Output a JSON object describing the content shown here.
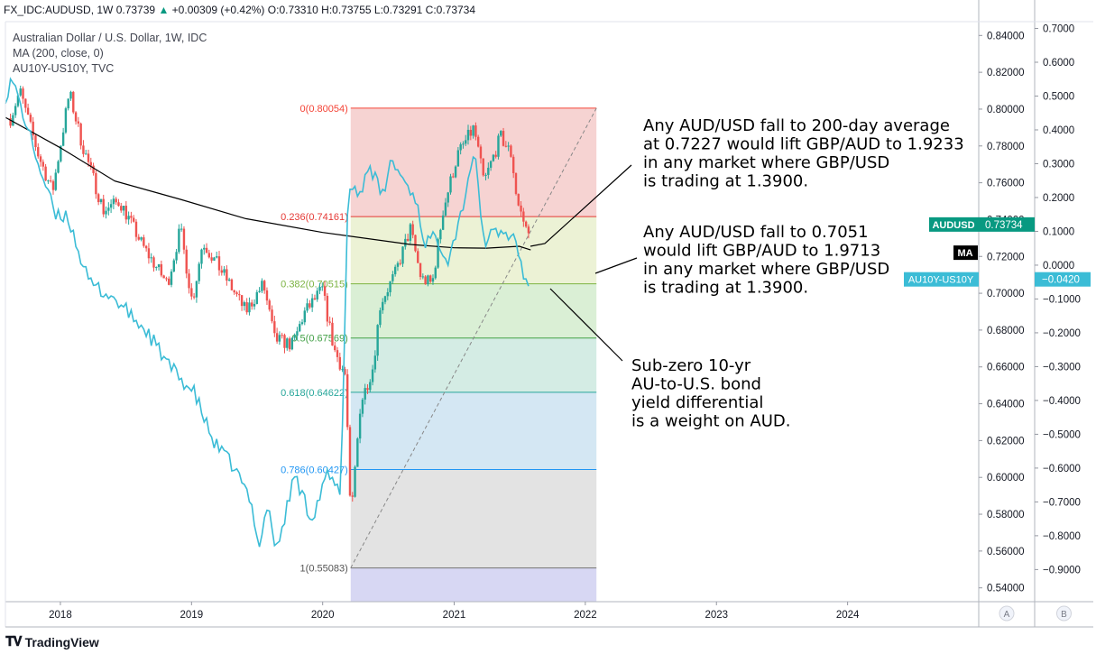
{
  "header": {
    "symbol": "FX_IDC:AUDUSD",
    "interval": "1W",
    "last": "0.73739",
    "change": "+0.00309 (+0.42%)",
    "open_label": "O:",
    "open": "0.73310",
    "high_label": "H:",
    "high": "0.73755",
    "low_label": "L:",
    "low": "0.73291",
    "close_label": "C:",
    "close": "0.73734"
  },
  "legend": {
    "line1": "Australian Dollar / U.S. Dollar, 1W, IDC",
    "line2": "MA (200, close, 0)",
    "line3": "AU10Y-US10Y, TVC"
  },
  "footer": {
    "brand": "TradingView"
  },
  "colors": {
    "up": "#26a69a",
    "down": "#ef5350",
    "ma": "#000000",
    "spread": "#3bbcd6",
    "audusd_badge": "#089981",
    "spread_badge": "#3bbcd6"
  },
  "chart_data": {
    "type": "candlestick",
    "x_axis": {
      "type": "time",
      "range": [
        "2017-08-01",
        "2024-12-31"
      ],
      "tick_labels": [
        "2018",
        "2019",
        "2020",
        "2021",
        "2022",
        "2023",
        "2024"
      ]
    },
    "y_axis_left": {
      "range": [
        0.5325,
        0.8475
      ],
      "tick_labels": [
        "0.84000",
        "0.82000",
        "0.80000",
        "0.78000",
        "0.76000",
        "0.74000",
        "0.72000",
        "0.70000",
        "0.68000",
        "0.66000",
        "0.64000",
        "0.62000",
        "0.60000",
        "0.58000",
        "0.56000",
        "0.54000"
      ],
      "scale_label": "A"
    },
    "y_axis_right": {
      "range": [
        -0.995,
        0.72
      ],
      "tick_labels": [
        "0.7000",
        "0.6000",
        "0.5000",
        "0.4000",
        "0.3000",
        "0.2000",
        "0.1000",
        "0.0000",
        "−0.1000",
        "−0.2000",
        "−0.3000",
        "−0.4000",
        "−0.5000",
        "−0.6000",
        "−0.7000",
        "−0.8000",
        "−0.9000"
      ],
      "scale_label": "B"
    },
    "price_anchors": [
      [
        "2017-08-15",
        0.795
      ],
      [
        "2017-09-10",
        0.81
      ],
      [
        "2017-11-01",
        0.775
      ],
      [
        "2017-12-10",
        0.755
      ],
      [
        "2018-01-26",
        0.809
      ],
      [
        "2018-03-01",
        0.782
      ],
      [
        "2018-05-01",
        0.745
      ],
      [
        "2018-06-15",
        0.75
      ],
      [
        "2018-08-20",
        0.725
      ],
      [
        "2018-10-26",
        0.705
      ],
      [
        "2018-12-01",
        0.735
      ],
      [
        "2019-01-03",
        0.695
      ],
      [
        "2019-02-01",
        0.728
      ],
      [
        "2019-04-01",
        0.71
      ],
      [
        "2019-06-01",
        0.69
      ],
      [
        "2019-07-20",
        0.705
      ],
      [
        "2019-08-20",
        0.675
      ],
      [
        "2019-10-10",
        0.672
      ],
      [
        "2019-11-10",
        0.689
      ],
      [
        "2019-12-31",
        0.702
      ],
      [
        "2020-02-01",
        0.67
      ],
      [
        "2020-03-05",
        0.655
      ],
      [
        "2020-03-19",
        0.575
      ],
      [
        "2020-04-15",
        0.64
      ],
      [
        "2020-05-20",
        0.66
      ],
      [
        "2020-06-10",
        0.695
      ],
      [
        "2020-07-20",
        0.71
      ],
      [
        "2020-09-01",
        0.735
      ],
      [
        "2020-10-01",
        0.708
      ],
      [
        "2020-11-01",
        0.705
      ],
      [
        "2020-12-01",
        0.745
      ],
      [
        "2021-01-10",
        0.775
      ],
      [
        "2021-02-25",
        0.79
      ],
      [
        "2021-03-25",
        0.76
      ],
      [
        "2021-05-10",
        0.785
      ],
      [
        "2021-06-10",
        0.775
      ],
      [
        "2021-06-25",
        0.75
      ],
      [
        "2021-07-20",
        0.735
      ],
      [
        "2021-08-02",
        0.7373
      ]
    ],
    "ma_200": [
      [
        "2017-08-01",
        0.7955
      ],
      [
        "2018-01-01",
        0.779
      ],
      [
        "2018-06-01",
        0.761
      ],
      [
        "2018-12-01",
        0.751
      ],
      [
        "2019-06-01",
        0.7405
      ],
      [
        "2020-01-01",
        0.733
      ],
      [
        "2020-09-01",
        0.7265
      ],
      [
        "2021-01-01",
        0.7247
      ],
      [
        "2021-04-01",
        0.7245
      ],
      [
        "2021-07-01",
        0.7255
      ],
      [
        "2021-08-02",
        0.7235
      ]
    ],
    "au10y_us10y_anchors": [
      [
        "2017-08-01",
        0.5
      ],
      [
        "2017-08-20",
        0.55
      ],
      [
        "2017-11-01",
        0.3
      ],
      [
        "2017-12-20",
        0.14
      ],
      [
        "2018-01-20",
        0.15
      ],
      [
        "2018-03-20",
        -0.05
      ],
      [
        "2018-06-01",
        -0.1
      ],
      [
        "2018-09-01",
        -0.2
      ],
      [
        "2018-11-01",
        -0.3
      ],
      [
        "2019-01-10",
        -0.38
      ],
      [
        "2019-03-01",
        -0.52
      ],
      [
        "2019-05-01",
        -0.6
      ],
      [
        "2019-06-15",
        -0.7
      ],
      [
        "2019-07-10",
        -0.83
      ],
      [
        "2019-08-01",
        -0.7
      ],
      [
        "2019-08-25",
        -0.85
      ],
      [
        "2019-10-15",
        -0.62
      ],
      [
        "2019-12-01",
        -0.75
      ],
      [
        "2020-01-15",
        -0.62
      ],
      [
        "2020-02-20",
        -0.68
      ],
      [
        "2020-03-10",
        0.15
      ],
      [
        "2020-03-20",
        0.25
      ],
      [
        "2020-04-10",
        0.2
      ],
      [
        "2020-05-10",
        0.3
      ],
      [
        "2020-06-15",
        0.2
      ],
      [
        "2020-07-10",
        0.31
      ],
      [
        "2020-08-15",
        0.25
      ],
      [
        "2020-09-15",
        0.2
      ],
      [
        "2020-10-10",
        0.07
      ],
      [
        "2020-11-15",
        0.08
      ],
      [
        "2020-12-15",
        0.02
      ],
      [
        "2021-01-20",
        0.15
      ],
      [
        "2021-02-25",
        0.34
      ],
      [
        "2021-03-25",
        0.07
      ],
      [
        "2021-05-01",
        0.1
      ],
      [
        "2021-06-20",
        0.08
      ],
      [
        "2021-07-20",
        -0.06
      ],
      [
        "2021-08-02",
        -0.042
      ]
    ],
    "fibonacci": {
      "start_date": "2020-03-19",
      "end_date": "2022-02-01",
      "low": 0.55083,
      "high": 0.80054,
      "levels": [
        {
          "ratio": 0,
          "price": 0.80054,
          "label": "0(0.80054)",
          "color": "#f44336",
          "fill": "#f6d3d2"
        },
        {
          "ratio": 0.236,
          "price": 0.74161,
          "label": "0.236(0.74161)",
          "color": "#e53935",
          "fill": "#ecf2d5"
        },
        {
          "ratio": 0.382,
          "price": 0.70515,
          "label": "0.382(0.70515)",
          "color": "#7cb342",
          "fill": "#daefd5"
        },
        {
          "ratio": 0.5,
          "price": 0.67569,
          "label": "0.5(0.67569)",
          "color": "#43a047",
          "fill": "#d4ece4"
        },
        {
          "ratio": 0.618,
          "price": 0.64622,
          "label": "0.618(0.64622)",
          "color": "#26a69a",
          "fill": "#d4e7f3"
        },
        {
          "ratio": 0.786,
          "price": 0.60427,
          "label": "0.786(0.60427)",
          "color": "#2196f3",
          "fill": "#e3e3e3"
        },
        {
          "ratio": 1,
          "price": 0.55083,
          "label": "1(0.55083)",
          "color": "#757575",
          "fill": "#d7d7f3"
        }
      ]
    },
    "badges": [
      {
        "text": "AUDUSD",
        "value": "0.73734",
        "price": 0.73734,
        "axis": "left"
      },
      {
        "text": "MA",
        "price": 0.7235,
        "axis": "left"
      },
      {
        "text": "AU10Y-US10Y",
        "value": "−0.0420",
        "price": -0.042,
        "axis": "right"
      }
    ],
    "annotations": [
      {
        "lines": [
          "Any AUD/USD fall to 200-day average",
          "at 0.7227 would lift GBP/AUD to 1.9233",
          "in any market where GBP/USD",
          "is trading at 1.3900."
        ]
      },
      {
        "lines": [
          "Any AUD/USD fall to 0.7051",
          "would lift GBP/AUD to 1.9713",
          "in any market where GBP/USD",
          "is trading at 1.3900."
        ]
      },
      {
        "lines": [
          "Sub-zero 10-yr",
          "AU-to-U.S. bond",
          "yield differential",
          "is a weight on AUD."
        ]
      }
    ]
  }
}
